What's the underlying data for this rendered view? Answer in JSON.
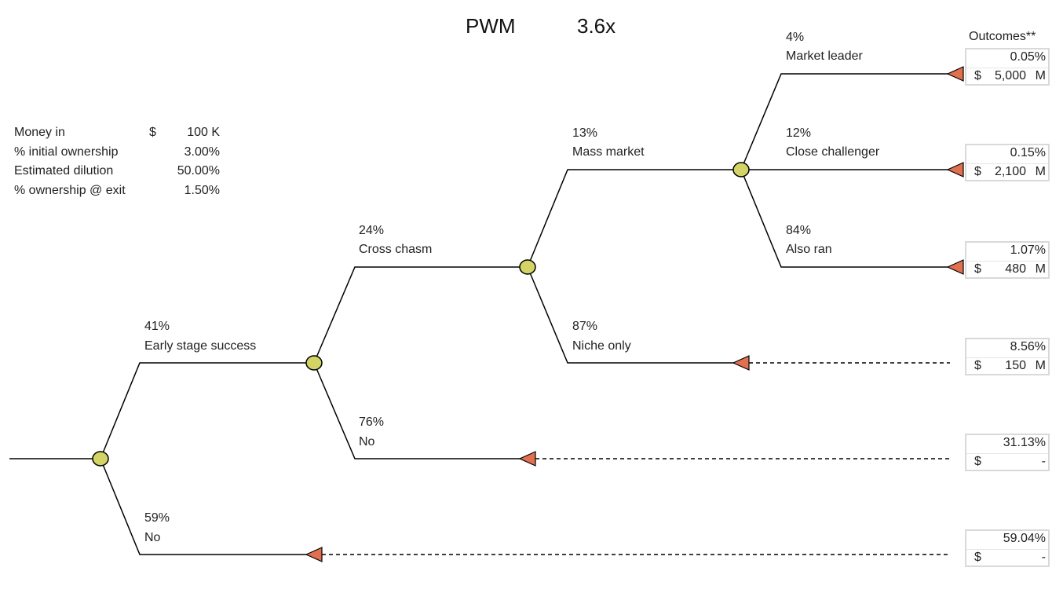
{
  "header": {
    "title": "PWM",
    "multiple": "3.6x"
  },
  "info": [
    {
      "label": "Money in",
      "currency": "$",
      "value": "100  K"
    },
    {
      "label": "% initial ownership",
      "currency": "",
      "value": "3.00%"
    },
    {
      "label": "Estimated dilution",
      "currency": "",
      "value": "50.00%"
    },
    {
      "label": "% ownership @ exit",
      "currency": "",
      "value": "1.50%"
    }
  ],
  "branches": [
    {
      "prob": "41%",
      "label": "Early stage success"
    },
    {
      "prob": "59%",
      "label": "No"
    },
    {
      "prob": "24%",
      "label": "Cross chasm"
    },
    {
      "prob": "76%",
      "label": "No"
    },
    {
      "prob": "13%",
      "label": "Mass market"
    },
    {
      "prob": "87%",
      "label": "Niche only"
    },
    {
      "prob": "4%",
      "label": "Market leader"
    },
    {
      "prob": "12%",
      "label": "Close challenger"
    },
    {
      "prob": "84%",
      "label": "Also ran"
    }
  ],
  "outcomes_title": "Outcomes**",
  "outcomes": [
    {
      "pct": "0.05%",
      "currency": "$",
      "amount": "5,000",
      "unit": "M"
    },
    {
      "pct": "0.15%",
      "currency": "$",
      "amount": "2,100",
      "unit": "M"
    },
    {
      "pct": "1.07%",
      "currency": "$",
      "amount": "480",
      "unit": "M"
    },
    {
      "pct": "8.56%",
      "currency": "$",
      "amount": "150",
      "unit": "M"
    },
    {
      "pct": "31.13%",
      "currency": "$",
      "amount": "-",
      "unit": ""
    },
    {
      "pct": "59.04%",
      "currency": "$",
      "amount": "-",
      "unit": ""
    }
  ],
  "colors": {
    "chance_node": "#d4d466",
    "terminal_node": "#e07050",
    "line": "#000000",
    "box_border": "#d9d9d9"
  }
}
